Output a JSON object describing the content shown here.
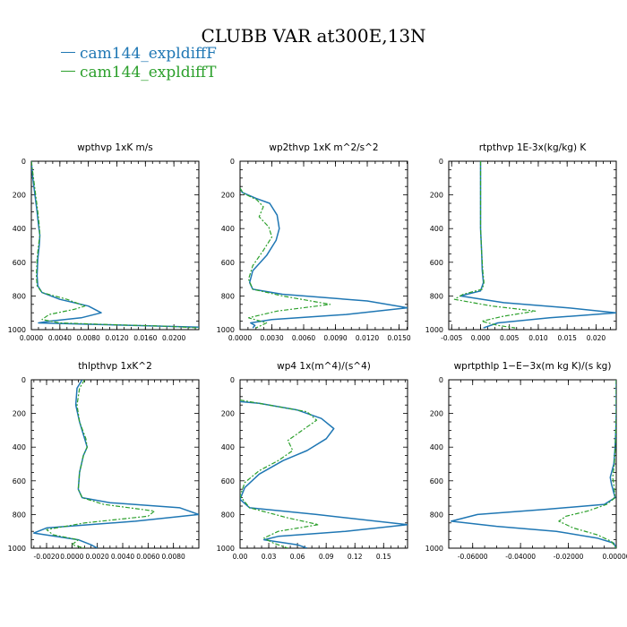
{
  "title": "CLUBB VAR at300E,13N",
  "legend": [
    {
      "label": "cam144_expldiffF",
      "color": "#1f77b4",
      "style": "solid"
    },
    {
      "label": "cam144_expldiffT",
      "color": "#2ca02c",
      "style": "dashed"
    }
  ],
  "chart_data": [
    {
      "type": "line",
      "title": "wpthvp   1xK m/s",
      "xlim": [
        0,
        0.0235
      ],
      "ylim": [
        1000,
        0
      ],
      "xticks": [
        0,
        0.004,
        0.008,
        0.012,
        0.016,
        0.02
      ],
      "xtick_labels": [
        "0.0000",
        "0.0040",
        "0.0080",
        "0.0120",
        "0.0160",
        "0.0200"
      ],
      "yticks": [
        0,
        200,
        400,
        600,
        800,
        1000
      ],
      "ytick_labels": [
        "0",
        "200",
        "400",
        "600",
        "800",
        "1000"
      ],
      "series": [
        {
          "name": "cam144_expldiffF",
          "x": [
            0,
            0.0002,
            0.0005,
            0.0008,
            0.001,
            0.0012,
            0.0011,
            0.0009,
            0.0008,
            0.0009,
            0.0015,
            0.004,
            0.008,
            0.0098,
            0.007,
            0.0025,
            0.001,
            0.005,
            0.014,
            0.0235
          ],
          "y": [
            0,
            100,
            200,
            300,
            380,
            440,
            500,
            580,
            680,
            740,
            780,
            820,
            860,
            900,
            930,
            950,
            960,
            965,
            975,
            985
          ]
        },
        {
          "name": "cam144_expldiffT",
          "x": [
            0,
            0.0003,
            0.0006,
            0.0009,
            0.0011,
            0.0012,
            0.001,
            0.0008,
            0.0007,
            0.0008,
            0.0015,
            0.005,
            0.0075,
            0.006,
            0.0025,
            0.0015,
            0.004,
            0.011,
            0.019,
            0.0235
          ],
          "y": [
            0,
            100,
            200,
            300,
            380,
            440,
            500,
            580,
            680,
            740,
            780,
            820,
            860,
            880,
            910,
            940,
            960,
            970,
            980,
            990
          ]
        }
      ]
    },
    {
      "type": "line",
      "title": "wp2thvp   1xK m^2/s^2",
      "xlim": [
        0,
        0.0158
      ],
      "ylim": [
        1000,
        0
      ],
      "xticks": [
        0,
        0.003,
        0.006,
        0.009,
        0.012,
        0.015
      ],
      "xtick_labels": [
        "0.0000",
        "0.0030",
        "0.0060",
        "0.0090",
        "0.0120",
        "0.0150"
      ],
      "yticks": [
        0,
        200,
        400,
        600,
        800,
        1000
      ],
      "ytick_labels": [
        "0",
        "200",
        "400",
        "600",
        "800",
        "1000"
      ],
      "series": [
        {
          "name": "cam144_expldiffF",
          "x": [
            0,
            0.0002,
            0.0015,
            0.0028,
            0.0035,
            0.0037,
            0.0034,
            0.0025,
            0.0012,
            0.0009,
            0.0012,
            0.004,
            0.012,
            0.0158,
            0.01,
            0.003,
            0.001,
            0.0014,
            0.0012
          ],
          "y": [
            160,
            185,
            220,
            250,
            320,
            400,
            470,
            560,
            650,
            720,
            760,
            790,
            830,
            870,
            910,
            940,
            960,
            975,
            990
          ]
        },
        {
          "name": "cam144_expldiffT",
          "x": [
            0,
            0.0003,
            0.0016,
            0.0022,
            0.0018,
            0.0027,
            0.003,
            0.0022,
            0.0012,
            0.0008,
            0.0012,
            0.004,
            0.0085,
            0.0035,
            0.0008,
            0.0025,
            0.0015
          ],
          "y": [
            160,
            190,
            230,
            270,
            330,
            390,
            450,
            530,
            620,
            700,
            760,
            800,
            850,
            890,
            930,
            960,
            990
          ]
        }
      ]
    },
    {
      "type": "line",
      "title": "rtpthvp   1E-3x(kg/kg) K",
      "xlim": [
        -0.0055,
        0.0235
      ],
      "ylim": [
        1000,
        0
      ],
      "xticks": [
        -0.005,
        0,
        0.005,
        0.01,
        0.015,
        0.02
      ],
      "xtick_labels": [
        "-0.005",
        "0.000",
        "0.005",
        "0.010",
        "0.015",
        "0.020"
      ],
      "yticks": [
        0,
        200,
        400,
        600,
        800,
        1000
      ],
      "ytick_labels": [
        "0",
        "200",
        "400",
        "600",
        "800",
        "1000"
      ],
      "series": [
        {
          "name": "cam144_expldiffF",
          "x": [
            0,
            0,
            0,
            0.0002,
            0.0003,
            0.0005,
            0,
            -0.0035,
            0.004,
            0.015,
            0.0235,
            0.012,
            0.003,
            0.0005
          ],
          "y": [
            0,
            200,
            400,
            550,
            650,
            720,
            770,
            800,
            840,
            870,
            900,
            930,
            960,
            990
          ]
        },
        {
          "name": "cam144_expldiffT",
          "x": [
            0,
            0,
            0,
            0.0002,
            0.0004,
            0.0006,
            0.0003,
            -0.003,
            -0.0045,
            0.002,
            0.0095,
            0.004,
            0.0002,
            0.003,
            0.006
          ],
          "y": [
            0,
            200,
            400,
            550,
            650,
            720,
            760,
            790,
            820,
            860,
            890,
            920,
            950,
            975,
            990
          ]
        }
      ]
    },
    {
      "type": "line",
      "title": "thlpthvp   1xK^2",
      "xlim": [
        -0.0032,
        0.01
      ],
      "ylim": [
        1000,
        0
      ],
      "xticks": [
        -0.002,
        0,
        0.002,
        0.004,
        0.006,
        0.008
      ],
      "xtick_labels": [
        "-0.0020",
        "0.0000",
        "0.0020",
        "0.0040",
        "0.0060",
        "0.0080"
      ],
      "yticks": [
        0,
        200,
        400,
        600,
        800,
        1000
      ],
      "ytick_labels": [
        "0",
        "200",
        "400",
        "600",
        "800",
        "1000"
      ],
      "series": [
        {
          "name": "cam144_expldiffF",
          "x": [
            0.0008,
            0.0004,
            0.0003,
            0.0006,
            0.001,
            0.0012,
            0.0009,
            0.0006,
            0.0005,
            0.0008,
            0.003,
            0.0085,
            0.01,
            0.005,
            -0.002,
            -0.003,
            0.0005,
            0.0015,
            0.002
          ],
          "y": [
            0,
            50,
            150,
            250,
            350,
            400,
            450,
            550,
            650,
            700,
            730,
            760,
            800,
            840,
            880,
            910,
            950,
            980,
            1000
          ]
        },
        {
          "name": "cam144_expldiffT",
          "x": [
            0.001,
            0.0006,
            0.0004,
            0.0006,
            0.0011,
            0.0012,
            0.0009,
            0.0006,
            0.0005,
            0.0008,
            0.0025,
            0.0065,
            0.006,
            0.001,
            -0.002,
            -0.0015,
            0.0005,
            0,
            0.001
          ],
          "y": [
            0,
            50,
            150,
            250,
            350,
            400,
            450,
            550,
            650,
            700,
            740,
            780,
            810,
            850,
            890,
            920,
            950,
            980,
            1000
          ]
        }
      ]
    },
    {
      "type": "line",
      "title": "wp4   1x(m^4)/(s^4)",
      "xlim": [
        0,
        0.175
      ],
      "ylim": [
        1000,
        0
      ],
      "xticks": [
        0,
        0.03,
        0.06,
        0.09,
        0.12,
        0.15
      ],
      "xtick_labels": [
        "0.00",
        "0.03",
        "0.06",
        "0.09",
        "0.12",
        "0.15"
      ],
      "yticks": [
        0,
        200,
        400,
        600,
        800,
        1000
      ],
      "ytick_labels": [
        "0",
        "200",
        "400",
        "600",
        "800",
        "1000"
      ],
      "series": [
        {
          "name": "cam144_expldiffF",
          "x": [
            0,
            0.02,
            0.06,
            0.085,
            0.098,
            0.09,
            0.07,
            0.045,
            0.02,
            0.005,
            0,
            0.01,
            0.08,
            0.175,
            0.11,
            0.04,
            0.025,
            0.06,
            0.07
          ],
          "y": [
            130,
            140,
            180,
            230,
            290,
            350,
            420,
            480,
            560,
            640,
            710,
            760,
            800,
            860,
            900,
            930,
            950,
            980,
            1000
          ]
        },
        {
          "name": "cam144_expldiffT",
          "x": [
            0,
            0.03,
            0.07,
            0.08,
            0.065,
            0.05,
            0.055,
            0.04,
            0.02,
            0.005,
            0,
            0.01,
            0.05,
            0.082,
            0.04,
            0.025,
            0.035,
            0.05
          ],
          "y": [
            120,
            150,
            190,
            240,
            300,
            360,
            420,
            480,
            540,
            610,
            690,
            760,
            820,
            860,
            900,
            940,
            970,
            1000
          ]
        }
      ]
    },
    {
      "type": "line",
      "title": "wprtpthlp   1−E−3x(m kg K)/(s kg)",
      "xlim": [
        -0.07,
        0
      ],
      "ylim": [
        1000,
        0
      ],
      "xticks": [
        -0.06,
        -0.04,
        -0.02,
        0
      ],
      "xtick_labels": [
        "-0.06000",
        "-0.04000",
        "-0.02000",
        "0.00000"
      ],
      "yticks": [
        0,
        200,
        400,
        600,
        800,
        1000
      ],
      "ytick_labels": [
        "0",
        "200",
        "400",
        "600",
        "800",
        "1000"
      ],
      "series": [
        {
          "name": "cam144_expldiffF",
          "x": [
            0,
            0,
            -0.0002,
            -0.0005,
            -0.001,
            -0.0025,
            -0.002,
            -0.0005,
            -0.005,
            -0.03,
            -0.058,
            -0.069,
            -0.05,
            -0.025,
            -0.008,
            -0.001,
            0
          ],
          "y": [
            0,
            200,
            300,
            400,
            500,
            580,
            620,
            700,
            740,
            770,
            800,
            840,
            870,
            900,
            940,
            970,
            1000
          ]
        },
        {
          "name": "cam144_expldiffT",
          "x": [
            0,
            0,
            -0.0002,
            -0.0004,
            -0.0008,
            -0.0015,
            -0.001,
            -0.0005,
            -0.004,
            -0.012,
            -0.021,
            -0.024,
            -0.018,
            -0.008,
            -0.002,
            0
          ],
          "y": [
            0,
            200,
            300,
            400,
            500,
            580,
            620,
            700,
            740,
            780,
            810,
            840,
            880,
            920,
            960,
            1000
          ]
        }
      ]
    }
  ]
}
